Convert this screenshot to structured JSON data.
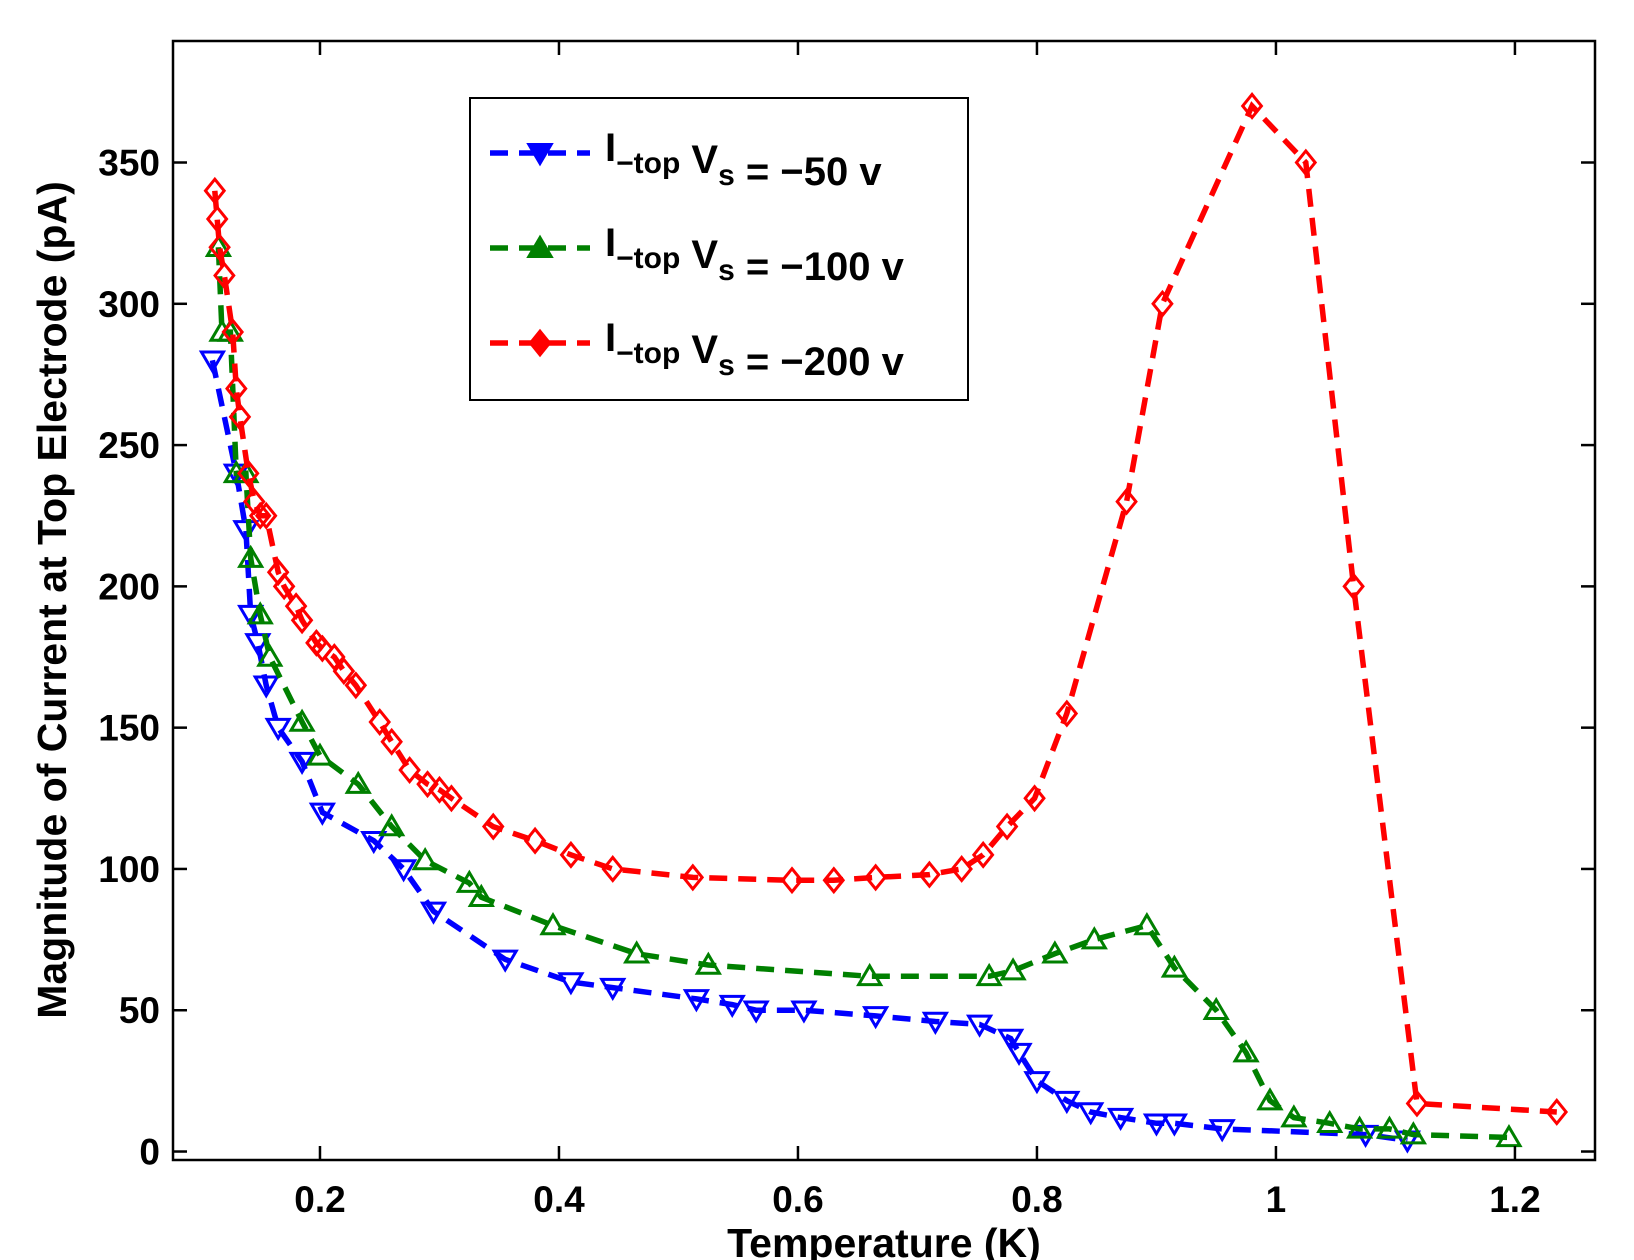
{
  "chart_data": {
    "type": "line",
    "title": "",
    "xlabel": "Temperature (K)",
    "ylabel": "Magnitude of Current at Top Electrode (pA)",
    "xlim": [
      0.077,
      1.267
    ],
    "ylim": [
      -3,
      393
    ],
    "xticks": [
      0.2,
      0.4,
      0.6,
      0.8,
      1,
      1.2
    ],
    "xtick_labels": [
      "0.2",
      "0.4",
      "0.6",
      "0.8",
      "1",
      "1.2"
    ],
    "yticks": [
      0,
      50,
      100,
      150,
      200,
      250,
      300,
      350
    ],
    "ytick_labels": [
      "0",
      "50",
      "100",
      "150",
      "200",
      "250",
      "300",
      "350"
    ],
    "grid": false,
    "legend_position": "top-center",
    "series": [
      {
        "name": "I_-top V_s = -50 v",
        "legend": {
          "main": "I",
          "sub": "−top",
          "mid": " V",
          "sub2": "s",
          "rest": " = −50 v"
        },
        "color": "#0000ff",
        "marker": "triangle-down",
        "x": [
          0.11,
          0.13,
          0.138,
          0.142,
          0.148,
          0.155,
          0.165,
          0.185,
          0.202,
          0.245,
          0.27,
          0.295,
          0.355,
          0.41,
          0.445,
          0.515,
          0.545,
          0.565,
          0.605,
          0.665,
          0.715,
          0.752,
          0.778,
          0.785,
          0.8,
          0.825,
          0.845,
          0.87,
          0.9,
          0.915,
          0.955,
          1.075,
          1.11
        ],
        "y": [
          280,
          240,
          220,
          190,
          180,
          165,
          150,
          138,
          120,
          110,
          100,
          85,
          68,
          60,
          58,
          54,
          52,
          50,
          50,
          48,
          46,
          45,
          40,
          35,
          25,
          18,
          14,
          12,
          10,
          10,
          8,
          6,
          4
        ]
      },
      {
        "name": "I_-top V_s = -100 v",
        "legend": {
          "main": "I",
          "sub": "−top",
          "mid": " V",
          "sub2": "s",
          "rest": " = −100 v"
        },
        "color": "#008000",
        "marker": "triangle-up",
        "x": [
          0.115,
          0.118,
          0.125,
          0.13,
          0.138,
          0.142,
          0.15,
          0.158,
          0.185,
          0.2,
          0.232,
          0.26,
          0.288,
          0.325,
          0.335,
          0.395,
          0.465,
          0.525,
          0.66,
          0.76,
          0.78,
          0.815,
          0.848,
          0.892,
          0.915,
          0.95,
          0.975,
          0.995,
          1.015,
          1.045,
          1.07,
          1.095,
          1.115,
          1.195
        ],
        "y": [
          320,
          290,
          290,
          240,
          240,
          210,
          190,
          175,
          152,
          140,
          130,
          115,
          103,
          95,
          90,
          80,
          70,
          66,
          62,
          62,
          64,
          70,
          75,
          80,
          65,
          50,
          35,
          18,
          12,
          10,
          8,
          8,
          6,
          5
        ]
      },
      {
        "name": "I_-top V_s = -200 v",
        "legend": {
          "main": "I",
          "sub": "−top",
          "mid": " V",
          "sub2": "s",
          "rest": " = −200 v"
        },
        "color": "#ff0000",
        "marker": "diamond",
        "x": [
          0.112,
          0.114,
          0.116,
          0.12,
          0.127,
          0.13,
          0.133,
          0.14,
          0.145,
          0.15,
          0.155,
          0.165,
          0.17,
          0.18,
          0.185,
          0.197,
          0.202,
          0.212,
          0.22,
          0.23,
          0.25,
          0.26,
          0.275,
          0.29,
          0.3,
          0.31,
          0.345,
          0.38,
          0.41,
          0.445,
          0.512,
          0.595,
          0.63,
          0.665,
          0.71,
          0.737,
          0.755,
          0.775,
          0.798,
          0.825,
          0.875,
          0.905,
          0.98,
          1.025,
          1.065,
          1.118,
          1.235
        ],
        "y": [
          340,
          330,
          320,
          310,
          290,
          270,
          260,
          240,
          230,
          225,
          225,
          205,
          200,
          193,
          188,
          180,
          178,
          175,
          170,
          165,
          152,
          145,
          135,
          130,
          128,
          125,
          115,
          110,
          105,
          100,
          97,
          96,
          96,
          97,
          98,
          100,
          105,
          115,
          125,
          155,
          230,
          300,
          370,
          350,
          200,
          17,
          14
        ]
      }
    ]
  }
}
